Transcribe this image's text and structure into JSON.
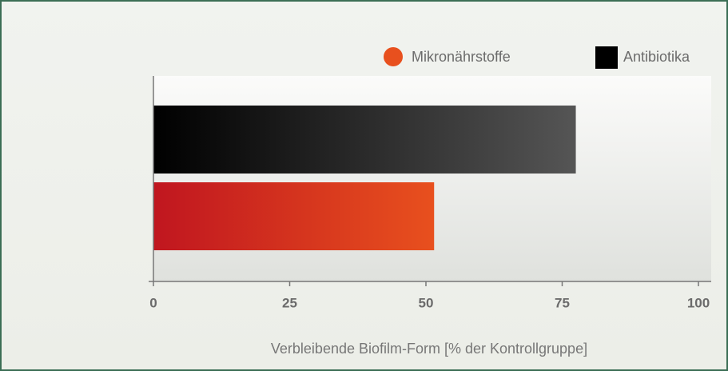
{
  "chart_data": {
    "type": "barh",
    "categories": [
      null
    ],
    "series": [
      {
        "name": "Antibiotika",
        "color": "#000000",
        "values": [
          77.5
        ]
      },
      {
        "name": "Mikronährstoffe",
        "color": "#e8501e",
        "values": [
          51.5
        ]
      }
    ],
    "xlabel": "Verbleibende Biofilm-Form [% der Kontrollgruppe]",
    "xlim": [
      0,
      100
    ],
    "xticks": [
      0,
      25,
      50,
      75,
      100
    ],
    "grid": false,
    "legend": "top right"
  }
}
